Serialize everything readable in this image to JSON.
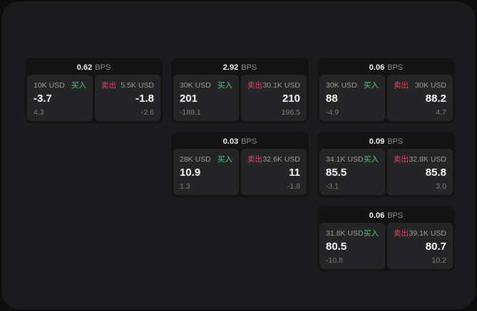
{
  "labels": {
    "bps": "BPS",
    "buy": "买入",
    "sell": "卖出"
  },
  "colors": {
    "outer_background": "#0d0d0d",
    "window_background": "#1b1b1d",
    "card_background": "#141414",
    "panel_background": "#252527",
    "buy_green": "#4ec97b",
    "sell_red": "#d9495f",
    "primary_text": "#fafafa",
    "muted_text": "#9c9c9c"
  },
  "cards": [
    {
      "bps": "0.62",
      "buy": {
        "amount": "10K USD",
        "value": "-3.7",
        "sub": "4.3"
      },
      "sell": {
        "amount": "5.5K USD",
        "value": "-1.8",
        "sub": "-2.6"
      }
    },
    {
      "bps": "2.92",
      "buy": {
        "amount": "30K USD",
        "value": "201",
        "sub": "-188.1"
      },
      "sell": {
        "amount": "30.1K USD",
        "value": "210",
        "sub": "196.5"
      }
    },
    {
      "bps": "0.06",
      "buy": {
        "amount": "30K USD",
        "value": "88",
        "sub": "-4.9"
      },
      "sell": {
        "amount": "30K USD",
        "value": "88.2",
        "sub": "4.7"
      }
    },
    {
      "bps": "0.03",
      "buy": {
        "amount": "28K USD",
        "value": "10.9",
        "sub": "1.3"
      },
      "sell": {
        "amount": "32.6K USD",
        "value": "11",
        "sub": "-1.8"
      }
    },
    {
      "bps": "0.09",
      "buy": {
        "amount": "34.1K USD",
        "value": "85.5",
        "sub": "-3.1"
      },
      "sell": {
        "amount": "32.8K USD",
        "value": "85.8",
        "sub": "3.0"
      }
    },
    {
      "bps": "0.06",
      "buy": {
        "amount": "31.8K USD",
        "value": "80.5",
        "sub": "-10.8"
      },
      "sell": {
        "amount": "39.1K USD",
        "value": "80.7",
        "sub": "10.2"
      }
    }
  ]
}
